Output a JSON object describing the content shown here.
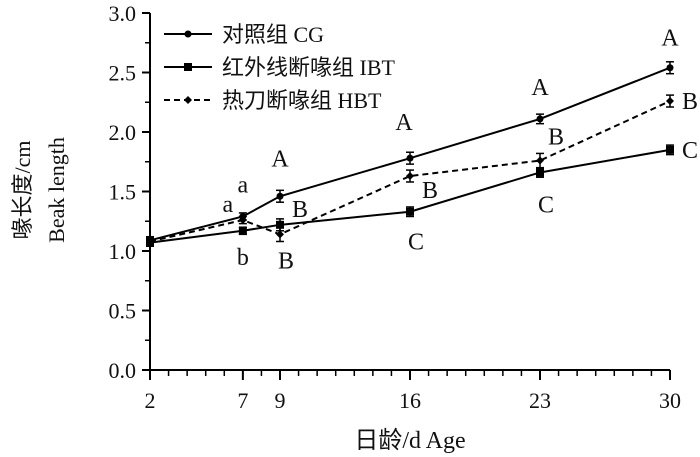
{
  "chart_data": {
    "type": "line",
    "xlabel": "日龄/d  Age",
    "ylabel_zh": "喙长度/cm",
    "ylabel_en": "Beak length",
    "xlim": [
      2,
      30
    ],
    "ylim": [
      0,
      3.0
    ],
    "xticks": [
      2,
      7,
      9,
      16,
      23,
      30
    ],
    "yticks": [
      "0.0",
      "0.5",
      "1.0",
      "1.5",
      "2.0",
      "2.5",
      "3.0"
    ],
    "grid": false,
    "legend_position": "top-left",
    "series": [
      {
        "name": "对照组 CG",
        "line": "solid",
        "marker": "circle",
        "x": [
          2,
          7,
          9,
          16,
          23,
          30
        ],
        "values": [
          1.09,
          1.29,
          1.46,
          1.78,
          2.11,
          2.54
        ],
        "errors": [
          0.03,
          0.03,
          0.05,
          0.05,
          0.04,
          0.05
        ],
        "labels": [
          "",
          "a",
          "A",
          "A",
          "A",
          "A"
        ]
      },
      {
        "name": "红外线断喙组 IBT",
        "line": "solid",
        "marker": "square",
        "x": [
          2,
          7,
          9,
          16,
          23,
          30
        ],
        "values": [
          1.07,
          1.17,
          1.22,
          1.33,
          1.66,
          1.85
        ],
        "errors": [
          0.03,
          0.03,
          0.05,
          0.04,
          0.04,
          0.04
        ],
        "labels": [
          "",
          "b",
          "B",
          "C",
          "C",
          "C"
        ]
      },
      {
        "name": "热刀断喙组 HBT",
        "line": "dashed",
        "marker": "diamond",
        "x": [
          2,
          7,
          9,
          16,
          23,
          30
        ],
        "values": [
          1.08,
          1.26,
          1.14,
          1.63,
          1.76,
          2.26
        ],
        "errors": [
          0.03,
          0.03,
          0.06,
          0.05,
          0.06,
          0.05
        ],
        "labels": [
          "",
          "a",
          "B",
          "B",
          "B",
          "B"
        ]
      }
    ]
  }
}
